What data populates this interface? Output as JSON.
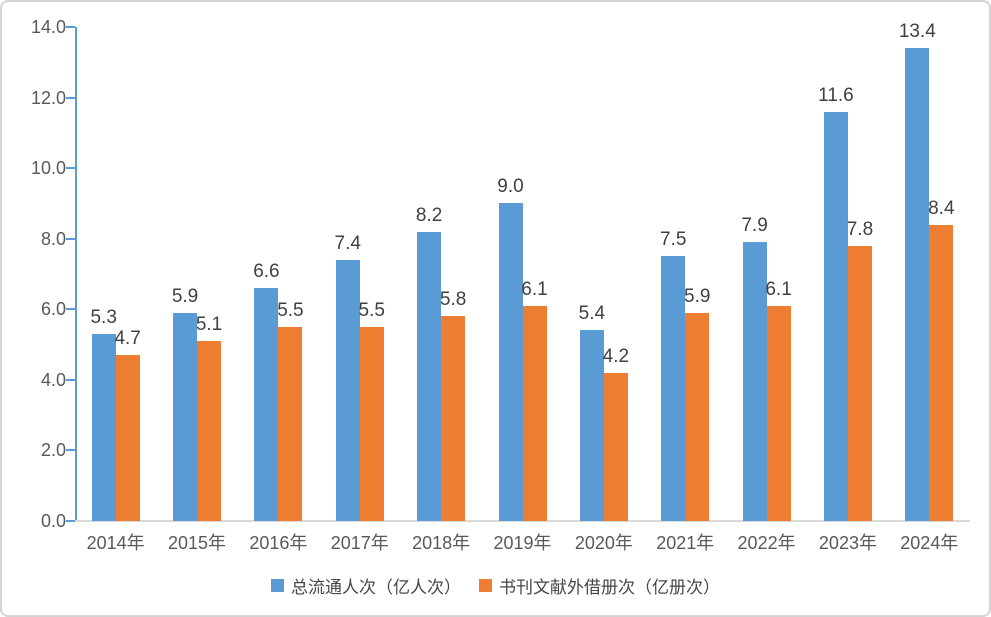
{
  "chart_data": {
    "type": "bar",
    "title": "",
    "categories": [
      "2014年",
      "2015年",
      "2016年",
      "2017年",
      "2018年",
      "2019年",
      "2020年",
      "2021年",
      "2022年",
      "2023年",
      "2024年"
    ],
    "series": [
      {
        "name": "总流通人次（亿人次）",
        "color": "#5B9BD5",
        "values": [
          5.3,
          5.9,
          6.6,
          7.4,
          8.2,
          9.0,
          5.4,
          7.5,
          7.9,
          11.6,
          13.4
        ]
      },
      {
        "name": "书刊文献外借册次（亿册次）",
        "color": "#ED7D31",
        "values": [
          4.7,
          5.1,
          5.5,
          5.5,
          5.8,
          6.1,
          4.2,
          5.9,
          6.1,
          7.8,
          8.4
        ]
      }
    ],
    "ylim": [
      0,
      14
    ],
    "ytick_step": 2,
    "ytick_labels": [
      "0.0",
      "2.0",
      "4.0",
      "6.0",
      "8.0",
      "10.0",
      "12.0",
      "14.0"
    ],
    "grid": false,
    "data_labels": true,
    "data_label_decimals": 1,
    "legend_position": "bottom",
    "xlabel": "",
    "ylabel": ""
  },
  "style": {
    "bar_color_1": "#5B9BD5",
    "bar_color_2": "#ED7D31",
    "axis_line_color": "#5B9BD5",
    "baseline_color": "#D9D9D9",
    "axis_text_color": "#595959",
    "data_label_color": "#404040",
    "frame_border_color": "#D4D4D4",
    "background": "#FFFFFF"
  }
}
